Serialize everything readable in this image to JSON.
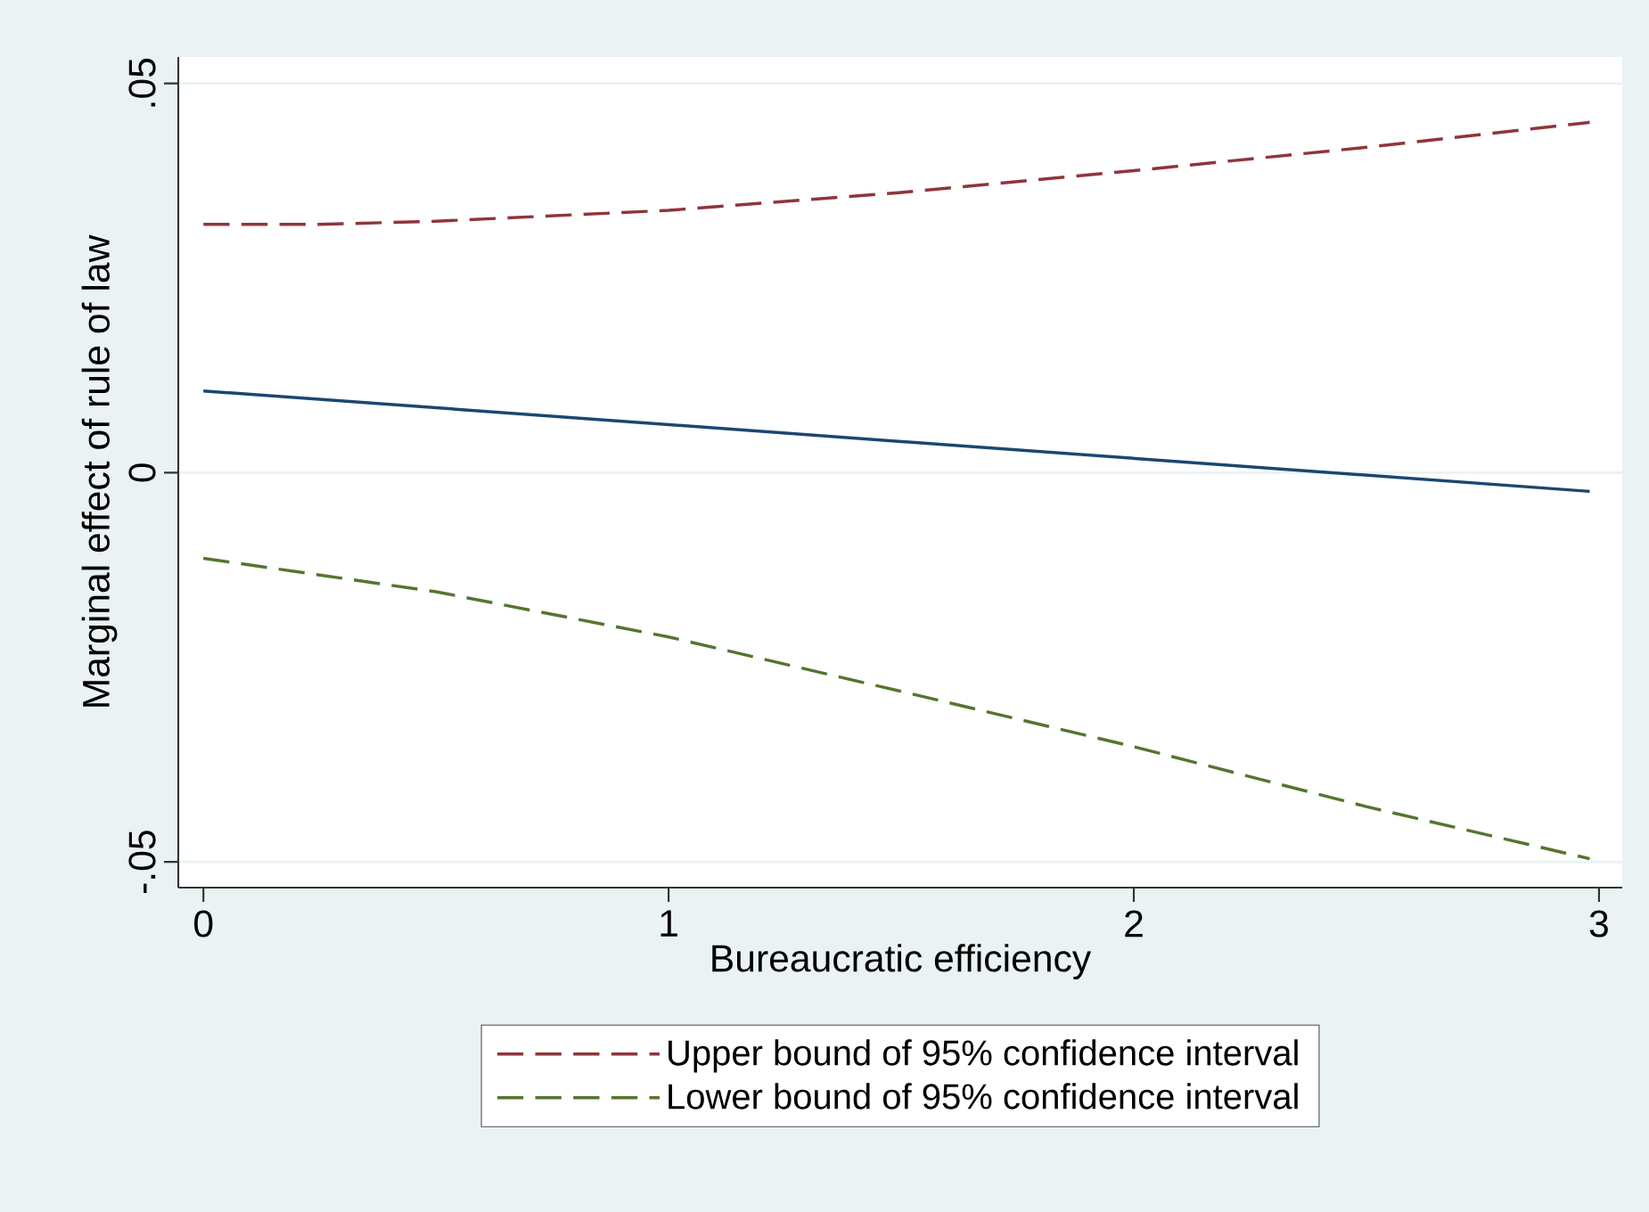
{
  "chart_data": {
    "type": "line",
    "xlabel": "Bureaucratic efficiency",
    "ylabel": "Marginal effect of rule of law",
    "xlim": [
      -0.054,
      3.05
    ],
    "ylim": [
      -0.0533,
      0.0534
    ],
    "xticks": [
      0,
      1,
      2,
      3
    ],
    "yticks": [
      {
        "value": -0.05,
        "label": "-.05"
      },
      {
        "value": 0,
        "label": "0"
      },
      {
        "value": 0.05,
        "label": ".05"
      }
    ],
    "grid": "y",
    "legend": "bottom",
    "series": [
      {
        "color": "#1a476f",
        "line_style": "solid",
        "x": [
          0,
          2.98
        ],
        "values": [
          0.0105,
          -0.0024
        ]
      },
      {
        "name": "Upper bound of 95% confidence interval",
        "color": "#90353b",
        "line_style": "dashed",
        "x": [
          0,
          0.25,
          0.5,
          1,
          1.5,
          2,
          2.5,
          2.98
        ],
        "values": [
          0.0319,
          0.0319,
          0.0323,
          0.0337,
          0.036,
          0.0388,
          0.0418,
          0.045
        ]
      },
      {
        "name": "Lower bound of 95% confidence interval",
        "color": "#55752f",
        "line_style": "dashed",
        "x": [
          0,
          0.5,
          1,
          1.5,
          2,
          2.5,
          2.98
        ],
        "values": [
          -0.011,
          -0.0153,
          -0.0211,
          -0.0281,
          -0.0352,
          -0.0429,
          -0.0496
        ]
      }
    ]
  }
}
